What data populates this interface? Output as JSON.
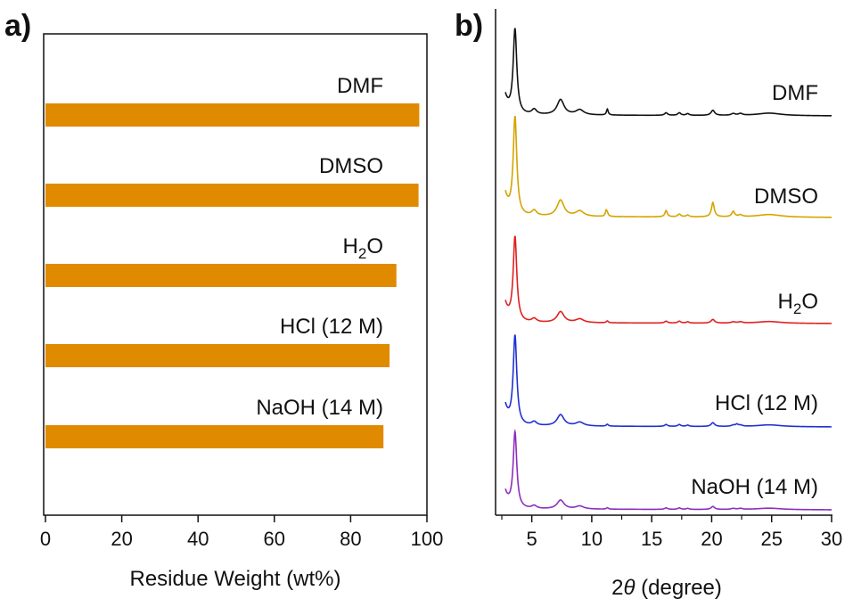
{
  "panels": {
    "a": {
      "label": "a)"
    },
    "b": {
      "label": "b)"
    }
  },
  "chart_data": [
    {
      "type": "bar",
      "orientation": "horizontal",
      "panel": "a)",
      "title": "",
      "xlabel": "Residue Weight (wt%)",
      "ylabel": "",
      "xlim": [
        0,
        100
      ],
      "xticks": [
        "0",
        "20",
        "40",
        "60",
        "80",
        "100"
      ],
      "categories": [
        "DMF",
        "DMSO",
        "H2O",
        "HCl (12 M)",
        "NaOH (14 M)"
      ],
      "values": [
        98,
        97.8,
        92,
        90.2,
        88.6
      ],
      "color": "#e08a00"
    },
    {
      "type": "line",
      "panel": "b)",
      "title": "",
      "xlabel": "2θ (degree)",
      "xlabel_symbol": "θ",
      "xlabel_prefix": "2",
      "xlabel_suffix": " (degree)",
      "ylabel": "",
      "xlim": [
        2.5,
        30
      ],
      "xticks": [
        "5",
        "10",
        "15",
        "20",
        "25",
        "30"
      ],
      "peaks": [
        {
          "x": 3.6,
          "h": 1.0,
          "w": 0.18
        },
        {
          "x": 5.2,
          "h": 0.06,
          "w": 0.25
        },
        {
          "x": 7.4,
          "h": 0.18,
          "w": 0.35
        },
        {
          "x": 9.0,
          "h": 0.06,
          "w": 0.4
        },
        {
          "x": 11.3,
          "h": 0.03,
          "w": 0.1
        },
        {
          "x": 16.2,
          "h": 0.03,
          "w": 0.15
        },
        {
          "x": 17.3,
          "h": 0.03,
          "w": 0.15
        },
        {
          "x": 18.0,
          "h": 0.02,
          "w": 0.15
        },
        {
          "x": 20.1,
          "h": 0.06,
          "w": 0.18
        },
        {
          "x": 21.8,
          "h": 0.02,
          "w": 0.2
        },
        {
          "x": 22.4,
          "h": 0.02,
          "w": 0.2
        },
        {
          "x": 24.8,
          "h": 0.03,
          "w": 1.2
        }
      ],
      "series": [
        {
          "name": "DMF",
          "color": "#111111",
          "scale": 1.0,
          "extra": [
            {
              "x": 11.3,
              "h": 0.04,
              "w": 0.08
            }
          ]
        },
        {
          "name": "DMSO",
          "color": "#d4a400",
          "scale": 0.92,
          "extra": [
            {
              "x": 11.2,
              "h": 0.06,
              "w": 0.08
            },
            {
              "x": 16.2,
              "h": 0.04,
              "w": 0.1
            },
            {
              "x": 20.1,
              "h": 0.1,
              "w": 0.12
            },
            {
              "x": 21.8,
              "h": 0.04,
              "w": 0.12
            }
          ]
        },
        {
          "name": "H2O",
          "color": "#e02020",
          "scale": 0.72,
          "extra": []
        },
        {
          "name": "HCl (12 M)",
          "color": "#2030d0",
          "scale": 0.7,
          "extra": [
            {
              "x": 22.1,
              "h": 0.03,
              "w": 0.12
            }
          ]
        },
        {
          "name": "NaOH (14 M)",
          "color": "#8a2fc0",
          "scale": 0.65,
          "extra": []
        }
      ]
    }
  ]
}
